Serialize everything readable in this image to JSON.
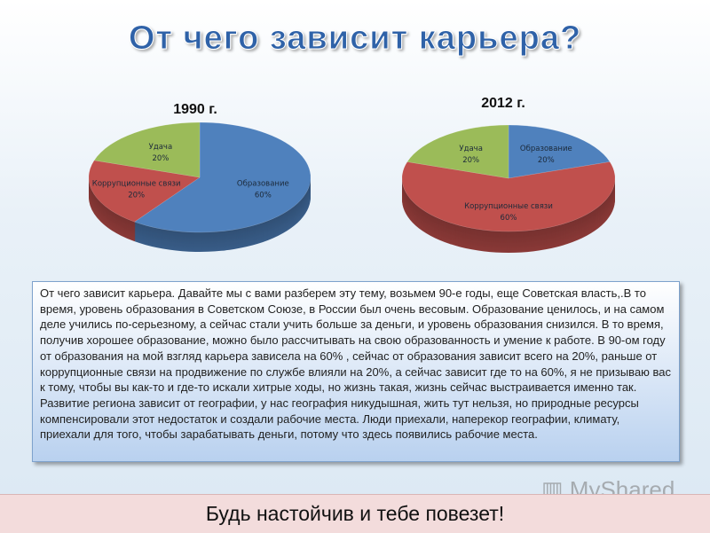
{
  "slide": {
    "title": "От чего зависит карьера?",
    "body_text": "От чего зависит карьера. Давайте мы с вами разберем эту тему, возьмем 90-е годы, еще Советская власть,.В то время, уровень образования в Советском Союзе, в России был очень весовым. Образование ценилось, и на самом деле учились  по-серьезному, а сейчас стали учить больше за деньги, и уровень образования снизился. В то время, получив хорошее образование, можно было рассчитывать на свою образованность и умение к работе. В 90-ом году от образования на мой взгляд карьера зависела на 60% , сейчас от образования зависит всего на 20%, раньше от коррупционные связи на продвижение по службе влияли на 20%, а сейчас зависит где то на 60%, я не призываю вас к тому, чтобы вы как-то и где-то искали хитрые ходы, но жизнь такая, жизнь сейчас выстраивается именно так. Развитие региона зависит от географии, у нас география никудышная, жить тут нельзя, но природные ресурсы компенсировали этот недостаток и создали рабочие места. Люди приехали, наперекор географии, климату, приехали для того, чтобы зарабатывать деньги, потому что здесь появились рабочие места.",
    "footer": "Будь настойчив и тебе повезет!",
    "watermark": "MyShared"
  },
  "chart_data": [
    {
      "type": "pie",
      "style": "3d",
      "title": "1990 г.",
      "slices": [
        {
          "label": "Образование",
          "value": 60,
          "display": "60%",
          "color": "#4f81bd"
        },
        {
          "label": "Коррупционные связи",
          "value": 20,
          "display": "20%",
          "color": "#c0504d"
        },
        {
          "label": "Удача",
          "value": 20,
          "display": "20%",
          "color": "#9bbb59"
        }
      ]
    },
    {
      "type": "pie",
      "style": "3d",
      "title": "2012 г.",
      "slices": [
        {
          "label": "Образование",
          "value": 20,
          "display": "20%",
          "color": "#4f81bd"
        },
        {
          "label": "Коррупционные связи",
          "value": 60,
          "display": "60%",
          "color": "#c0504d"
        },
        {
          "label": "Удача",
          "value": 20,
          "display": "20%",
          "color": "#9bbb59"
        }
      ]
    }
  ]
}
